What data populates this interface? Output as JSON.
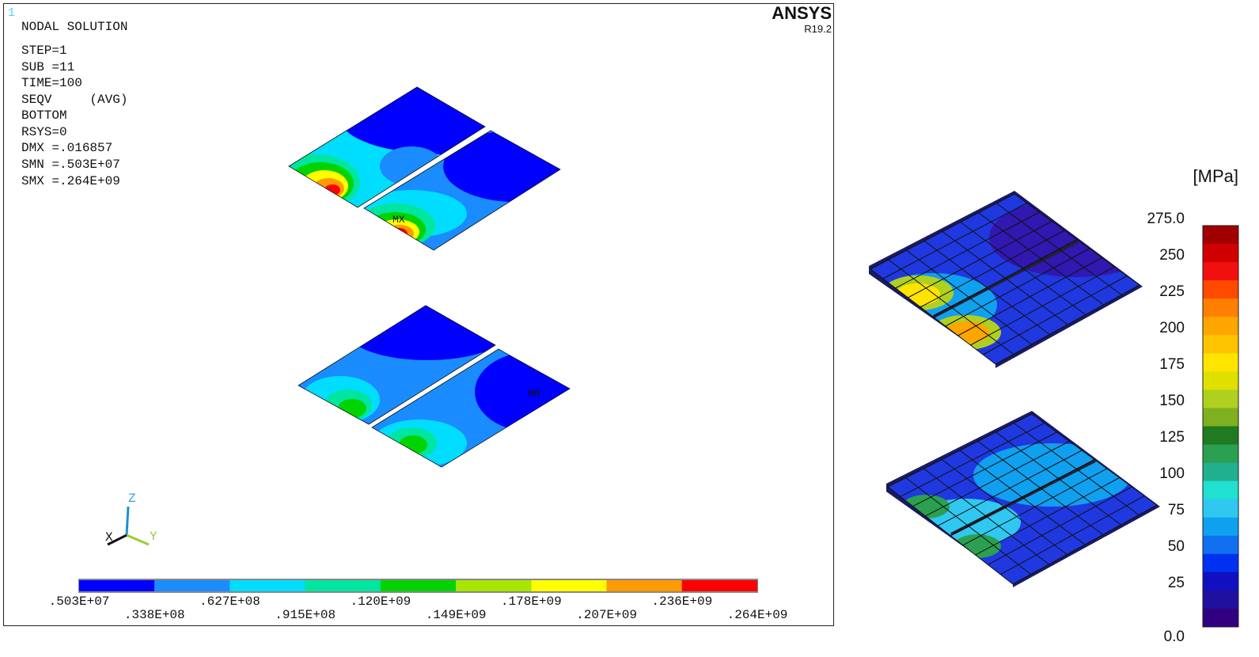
{
  "ansys_panel": {
    "window_number": "1",
    "info_lines": [
      "NODAL SOLUTION",
      "STEP=1",
      "SUB =11",
      "TIME=100",
      "SEQV     (AVG)",
      "BOTTOM",
      "RSYS=0",
      "DMX =.016857",
      "SMN =.503E+07",
      "SMX =.264E+09"
    ],
    "logo": "ANSYS",
    "version": "R19.2",
    "max_marker": "MX",
    "min_marker": "MN",
    "triad": {
      "z": "Z",
      "x": "X",
      "y": "Y"
    },
    "legend": {
      "colors": [
        "#0000ff",
        "#1a8cff",
        "#00ddff",
        "#00e6a0",
        "#00d400",
        "#a6e600",
        "#ffff00",
        "#ff9a00",
        "#ff0000"
      ],
      "labels": [
        ".503E+07",
        ".338E+08",
        ".627E+08",
        ".915E+08",
        ".120E+09",
        ".149E+09",
        ".178E+09",
        ".207E+09",
        ".236E+09",
        ".264E+09"
      ]
    }
  },
  "right_panel": {
    "unit": "[MPa]",
    "legend": {
      "colors": [
        "#a00000",
        "#d00000",
        "#f01010",
        "#ff4a00",
        "#ff8000",
        "#ffa500",
        "#ffc400",
        "#ffe400",
        "#dfe000",
        "#b0d020",
        "#7eb020",
        "#1f7a20",
        "#2aa050",
        "#20b090",
        "#20e0d0",
        "#30c8f0",
        "#10a0f0",
        "#1070f0",
        "#0030f0",
        "#1010c0",
        "#2010a0",
        "#300080"
      ],
      "labels": [
        "275.0",
        "250",
        "225",
        "200",
        "175",
        "150",
        "125",
        "100",
        "75",
        "50",
        "25",
        "0.0"
      ]
    }
  }
}
